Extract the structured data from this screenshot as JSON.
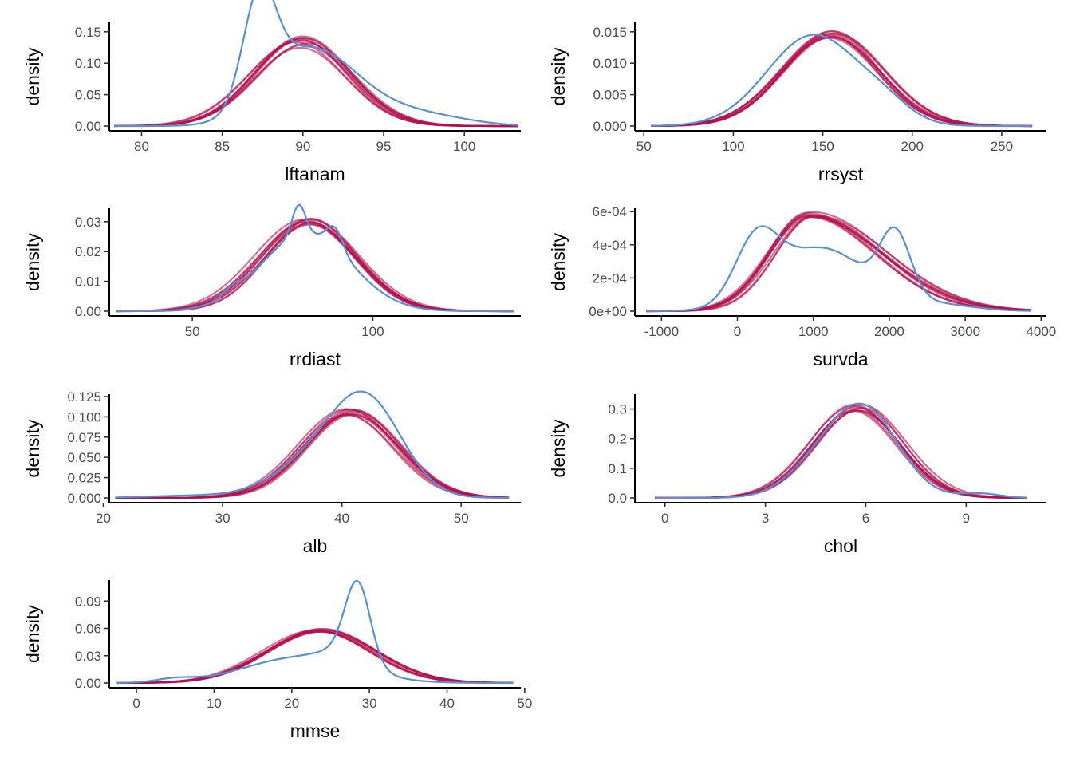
{
  "figure": {
    "description_colors": {
      "observed": "#5a8fd0",
      "imputed": "#b0104f",
      "axis": "#000000",
      "tick_label": "#4d4d4d"
    }
  },
  "chart_data": [
    {
      "type": "line",
      "id": "lftanam",
      "xlabel": "lftanam",
      "ylabel": "density",
      "xlim": [
        78,
        103.5
      ],
      "ylim": [
        0,
        0.165
      ],
      "xticks": [
        80,
        85,
        90,
        95,
        100
      ],
      "xtick_labels": [
        "80",
        "85",
        "90",
        "95",
        "100"
      ],
      "yticks": [
        0,
        0.05,
        0.1,
        0.15
      ],
      "ytick_labels": [
        "0.00",
        "0.05",
        "0.10",
        "0.15"
      ],
      "observed": {
        "kind": "bumps",
        "x_range": [
          78.3,
          103.3
        ],
        "bumps": [
          [
            87.3,
            1.0,
            0.16
          ],
          [
            88.8,
            2.2,
            0.055
          ],
          [
            91.5,
            2.5,
            0.09
          ],
          [
            96.5,
            2.5,
            0.02
          ],
          [
            100,
            2.0,
            0.004
          ]
        ]
      },
      "imputed": {
        "kind": "normal",
        "x_range": [
          78.3,
          103.3
        ],
        "mean": 89.9,
        "sd": 2.95,
        "peak": 0.133,
        "jitter_mean": 0.35,
        "jitter_sd": 0.07,
        "jitter_peak": 0.01,
        "count": 10
      }
    },
    {
      "type": "line",
      "id": "rrsyst",
      "xlabel": "rrsyst",
      "ylabel": "density",
      "xlim": [
        45,
        275
      ],
      "ylim": [
        0,
        0.0165
      ],
      "xticks": [
        50,
        100,
        150,
        200,
        250
      ],
      "xtick_labels": [
        "50",
        "100",
        "150",
        "200",
        "250"
      ],
      "yticks": [
        0,
        0.005,
        0.01,
        0.015
      ],
      "ytick_labels": [
        "0.000",
        "0.005",
        "0.010",
        "0.015"
      ],
      "observed": {
        "kind": "bumps",
        "x_range": [
          54,
          267
        ],
        "bumps": [
          [
            145,
            26,
            0.0145
          ],
          [
            185,
            14,
            0.002
          ]
        ]
      },
      "imputed": {
        "kind": "normal",
        "x_range": [
          54,
          267
        ],
        "mean": 154,
        "sd": 27,
        "peak": 0.0145,
        "jitter_mean": 3,
        "jitter_sd": 0.06,
        "jitter_peak": 0.0006,
        "count": 10
      }
    },
    {
      "type": "line",
      "id": "rrdiast",
      "xlabel": "rrdiast",
      "ylabel": "density",
      "xlim": [
        27,
        141
      ],
      "ylim": [
        0,
        0.0345
      ],
      "xticks": [
        50,
        100
      ],
      "xtick_labels": [
        "50",
        "100"
      ],
      "yticks": [
        0,
        0.01,
        0.02,
        0.03
      ],
      "ytick_labels": [
        "0.00",
        "0.01",
        "0.02",
        "0.03"
      ],
      "observed": {
        "kind": "bumps",
        "x_range": [
          29,
          139
        ],
        "bumps": [
          [
            81.5,
            12.5,
            0.026
          ],
          [
            79.5,
            1.8,
            0.01
          ],
          [
            89.5,
            2.2,
            0.007
          ],
          [
            61,
            2.5,
            0.002
          ]
        ]
      },
      "imputed": {
        "kind": "normal",
        "x_range": [
          29,
          139
        ],
        "mean": 82,
        "sd": 13,
        "peak": 0.03,
        "jitter_mean": 1.2,
        "jitter_sd": 0.06,
        "jitter_peak": 0.001,
        "count": 10
      }
    },
    {
      "type": "line",
      "id": "survda",
      "xlabel": "survda",
      "ylabel": "density",
      "xlim": [
        -1350,
        4070
      ],
      "ylim": [
        0,
        0.00062
      ],
      "xticks": [
        -1000,
        0,
        1000,
        2000,
        3000,
        4000
      ],
      "xtick_labels": [
        "-1000",
        "0",
        "1000",
        "2000",
        "3000",
        "4000"
      ],
      "yticks": [
        0,
        0.0002,
        0.0004,
        0.0006
      ],
      "ytick_labels": [
        "0e+00",
        "2e-04",
        "4e-04",
        "6e-04"
      ],
      "observed": {
        "kind": "bumps",
        "x_range": [
          -1200,
          3870
        ],
        "bumps": [
          [
            250,
            280,
            0.00036
          ],
          [
            1100,
            600,
            0.00038
          ],
          [
            2080,
            200,
            0.00038
          ],
          [
            2600,
            500,
            4e-05
          ]
        ]
      },
      "imputed": {
        "kind": "skew",
        "x_range": [
          -1200,
          3870
        ],
        "mean": 950,
        "sd_left": 520,
        "sd_right": 950,
        "peak": 0.00058,
        "jitter_mean": 70,
        "jitter_sd": 0.06,
        "jitter_peak": 2e-05,
        "count": 10
      }
    },
    {
      "type": "line",
      "id": "alb",
      "xlabel": "alb",
      "ylabel": "density",
      "xlim": [
        20.5,
        55
      ],
      "ylim": [
        0,
        0.128
      ],
      "xticks": [
        20,
        30,
        40,
        50
      ],
      "xtick_labels": [
        "20",
        "30",
        "40",
        "50"
      ],
      "yticks": [
        0,
        0.025,
        0.05,
        0.075,
        0.1,
        0.125
      ],
      "ytick_labels": [
        "0.000",
        "0.025",
        "0.050",
        "0.075",
        "0.100",
        "0.125"
      ],
      "observed": {
        "kind": "bumps",
        "x_range": [
          21,
          54
        ],
        "bumps": [
          [
            42,
            3.0,
            0.12
          ],
          [
            37,
            3.2,
            0.035
          ],
          [
            28,
            4.0,
            0.003
          ]
        ]
      },
      "imputed": {
        "kind": "normal",
        "x_range": [
          21,
          54
        ],
        "mean": 40.7,
        "sd": 3.9,
        "peak": 0.106,
        "jitter_mean": 0.4,
        "jitter_sd": 0.05,
        "jitter_peak": 0.004,
        "count": 10
      }
    },
    {
      "type": "line",
      "id": "chol",
      "xlabel": "chol",
      "ylabel": "density",
      "xlim": [
        -0.9,
        11.4
      ],
      "ylim": [
        0,
        0.35
      ],
      "xticks": [
        0,
        3,
        6,
        9
      ],
      "xtick_labels": [
        "0",
        "3",
        "6",
        "9"
      ],
      "yticks": [
        0,
        0.1,
        0.2,
        0.3
      ],
      "ytick_labels": [
        "0.0",
        "0.1",
        "0.2",
        "0.3"
      ],
      "observed": {
        "kind": "bumps",
        "x_range": [
          -0.3,
          10.8
        ],
        "bumps": [
          [
            5.9,
            1.05,
            0.305
          ],
          [
            4.3,
            0.9,
            0.06
          ],
          [
            9.4,
            0.6,
            0.015
          ]
        ]
      },
      "imputed": {
        "kind": "normal",
        "x_range": [
          -0.3,
          10.8
        ],
        "mean": 5.75,
        "sd": 1.32,
        "peak": 0.305,
        "jitter_mean": 0.12,
        "jitter_sd": 0.05,
        "jitter_peak": 0.015,
        "count": 10
      }
    },
    {
      "type": "line",
      "id": "mmse",
      "xlabel": "mmse",
      "ylabel": "density",
      "xlim": [
        -3.5,
        49.5
      ],
      "ylim": [
        0,
        0.113
      ],
      "xticks": [
        0,
        10,
        20,
        30,
        40,
        50
      ],
      "xtick_labels": [
        "0",
        "10",
        "20",
        "30",
        "40",
        "50"
      ],
      "yticks": [
        0,
        0.03,
        0.06,
        0.09
      ],
      "ytick_labels": [
        "0.00",
        "0.03",
        "0.06",
        "0.09"
      ],
      "observed": {
        "kind": "bumps",
        "x_range": [
          -2.5,
          48.5
        ],
        "bumps": [
          [
            28.5,
            1.6,
            0.083
          ],
          [
            21,
            7.0,
            0.028
          ],
          [
            5,
            2.5,
            0.004
          ],
          [
            27,
            3.0,
            0.015
          ]
        ]
      },
      "imputed": {
        "kind": "normal",
        "x_range": [
          -2.5,
          48.5
        ],
        "mean": 23.5,
        "sd": 6.8,
        "peak": 0.058,
        "jitter_mean": 0.6,
        "jitter_sd": 0.04,
        "jitter_peak": 0.002,
        "count": 10
      }
    }
  ]
}
